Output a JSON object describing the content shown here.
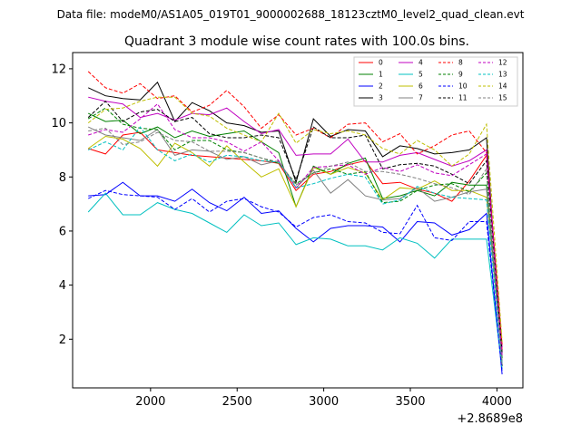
{
  "suptitle": "Data file: modeM0/AS1A05_019T01_9000002688_18123cztM0_level2_quad_clean.evt",
  "chart_data": {
    "type": "line",
    "title": "Quadrant 3 module wise count rates with 100.0s bins.",
    "xlabel": "",
    "ylabel": "",
    "x_offset_label": "+2.8689e8",
    "xlim": [
      1550,
      4150
    ],
    "ylim": [
      0.2,
      12.6
    ],
    "xticks": [
      2000,
      2500,
      3000,
      3500,
      4000
    ],
    "yticks": [
      2,
      4,
      6,
      8,
      10,
      12
    ],
    "legend_position": "top-right",
    "x": [
      1640,
      1740,
      1840,
      1940,
      2040,
      2140,
      2240,
      2340,
      2440,
      2540,
      2640,
      2740,
      2840,
      2940,
      3040,
      3140,
      3240,
      3340,
      3440,
      3540,
      3640,
      3740,
      3840,
      3940,
      4030
    ],
    "series": [
      {
        "name": "0",
        "color": "#ff0000",
        "dash": "solid",
        "values": [
          9.05,
          8.85,
          9.55,
          9.65,
          9.0,
          8.9,
          8.8,
          8.75,
          8.7,
          8.65,
          8.6,
          8.5,
          7.5,
          8.1,
          8.2,
          8.45,
          8.6,
          7.75,
          7.8,
          7.55,
          7.4,
          7.1,
          7.85,
          8.8,
          1.6
        ]
      },
      {
        "name": "1",
        "color": "#008000",
        "dash": "solid",
        "values": [
          10.35,
          10.05,
          10.1,
          9.6,
          9.85,
          9.45,
          9.7,
          9.5,
          9.6,
          9.7,
          9.3,
          8.9,
          6.9,
          8.4,
          8.1,
          8.5,
          8.7,
          7.2,
          7.3,
          7.5,
          7.3,
          7.8,
          7.7,
          7.7,
          1.4
        ]
      },
      {
        "name": "2",
        "color": "#0000ff",
        "dash": "solid",
        "values": [
          7.3,
          7.35,
          7.8,
          7.3,
          7.3,
          7.1,
          7.55,
          7.05,
          6.75,
          7.25,
          6.65,
          6.75,
          6.1,
          5.6,
          6.1,
          6.2,
          6.2,
          6.15,
          5.6,
          6.35,
          6.3,
          5.85,
          6.05,
          6.65,
          0.7
        ]
      },
      {
        "name": "3",
        "color": "#000000",
        "dash": "solid",
        "values": [
          11.3,
          11.0,
          10.9,
          10.85,
          11.5,
          10.05,
          10.75,
          10.45,
          10.0,
          9.9,
          9.65,
          9.7,
          7.8,
          10.15,
          9.5,
          9.75,
          9.7,
          8.75,
          9.15,
          9.05,
          8.85,
          8.9,
          9.0,
          9.45,
          1.0
        ]
      },
      {
        "name": "4",
        "color": "#c000c0",
        "dash": "solid",
        "values": [
          10.95,
          10.8,
          10.7,
          10.2,
          10.35,
          10.1,
          10.35,
          10.3,
          10.55,
          10.05,
          9.6,
          9.75,
          8.8,
          8.85,
          8.85,
          9.4,
          8.55,
          8.55,
          8.8,
          8.9,
          8.65,
          8.4,
          8.6,
          9.0,
          1.7
        ]
      },
      {
        "name": "5",
        "color": "#00c0c0",
        "dash": "solid",
        "values": [
          6.7,
          7.4,
          6.6,
          6.6,
          7.05,
          6.8,
          6.65,
          6.3,
          5.95,
          6.6,
          6.2,
          6.3,
          5.5,
          5.75,
          5.7,
          5.45,
          5.45,
          5.3,
          5.75,
          5.55,
          5.0,
          5.7,
          5.7,
          5.7,
          0.9
        ]
      },
      {
        "name": "6",
        "color": "#bfbf00",
        "dash": "solid",
        "values": [
          9.05,
          9.5,
          9.4,
          9.05,
          8.4,
          9.25,
          8.9,
          8.4,
          9.15,
          8.55,
          8.0,
          8.3,
          6.9,
          8.35,
          8.1,
          8.35,
          8.15,
          7.15,
          7.6,
          7.55,
          7.85,
          7.5,
          7.5,
          7.25,
          1.5
        ]
      },
      {
        "name": "7",
        "color": "#808080",
        "dash": "solid",
        "values": [
          9.85,
          9.55,
          9.45,
          9.35,
          9.75,
          8.8,
          9.0,
          8.95,
          8.65,
          8.75,
          8.45,
          8.6,
          7.6,
          8.25,
          7.4,
          7.9,
          7.3,
          7.15,
          7.2,
          7.6,
          7.1,
          7.25,
          7.45,
          7.55,
          1.2
        ]
      },
      {
        "name": "8",
        "color": "#ff0000",
        "dash": "dashed",
        "values": [
          11.9,
          11.3,
          11.1,
          11.45,
          10.9,
          11.0,
          10.4,
          10.65,
          11.2,
          10.6,
          9.8,
          10.3,
          9.55,
          9.8,
          9.45,
          9.95,
          10.0,
          9.3,
          9.6,
          8.85,
          9.15,
          9.55,
          9.7,
          8.9,
          1.8
        ]
      },
      {
        "name": "9",
        "color": "#008000",
        "dash": "dashed",
        "values": [
          10.15,
          10.55,
          9.95,
          9.8,
          9.75,
          9.0,
          9.35,
          9.35,
          9.0,
          8.9,
          8.7,
          8.5,
          7.75,
          8.15,
          8.3,
          8.1,
          8.2,
          7.05,
          7.1,
          7.5,
          7.7,
          7.75,
          7.45,
          8.15,
          1.3
        ]
      },
      {
        "name": "10",
        "color": "#0000ff",
        "dash": "dashed",
        "values": [
          7.2,
          7.5,
          7.35,
          7.3,
          7.25,
          6.8,
          7.2,
          6.7,
          7.1,
          7.2,
          6.9,
          6.7,
          6.15,
          6.5,
          6.6,
          6.35,
          6.3,
          5.95,
          5.9,
          6.95,
          5.75,
          5.65,
          6.35,
          6.35,
          0.8
        ]
      },
      {
        "name": "11",
        "color": "#000000",
        "dash": "dashed",
        "values": [
          10.2,
          10.8,
          10.05,
          10.4,
          10.5,
          10.05,
          10.2,
          9.6,
          9.45,
          9.45,
          9.55,
          9.45,
          7.9,
          9.85,
          9.45,
          9.45,
          9.55,
          8.3,
          8.45,
          8.5,
          8.4,
          8.1,
          7.75,
          8.6,
          1.5
        ]
      },
      {
        "name": "12",
        "color": "#c000c0",
        "dash": "dashed",
        "values": [
          9.55,
          9.75,
          9.65,
          10.15,
          10.7,
          9.75,
          9.45,
          9.45,
          9.3,
          8.95,
          9.3,
          8.6,
          7.6,
          8.35,
          8.4,
          8.45,
          8.1,
          8.35,
          8.2,
          8.45,
          8.15,
          8.05,
          8.45,
          8.85,
          1.4
        ]
      },
      {
        "name": "13",
        "color": "#00c0c0",
        "dash": "dashed",
        "values": [
          9.0,
          9.3,
          9.0,
          9.85,
          9.0,
          8.6,
          8.85,
          8.55,
          8.8,
          8.75,
          8.6,
          8.55,
          7.6,
          7.75,
          7.95,
          8.1,
          8.0,
          7.0,
          7.15,
          7.65,
          7.4,
          7.25,
          7.2,
          7.15,
          1.1
        ]
      },
      {
        "name": "14",
        "color": "#bfbf00",
        "dash": "dashed",
        "values": [
          10.0,
          10.5,
          10.55,
          10.8,
          10.95,
          10.95,
          10.35,
          10.25,
          9.8,
          9.55,
          9.3,
          10.35,
          9.25,
          9.75,
          9.6,
          9.7,
          9.55,
          9.05,
          8.85,
          9.35,
          9.0,
          8.4,
          8.85,
          9.95,
          1.9
        ]
      },
      {
        "name": "15",
        "color": "#808080",
        "dash": "dashed",
        "values": [
          9.7,
          9.8,
          9.2,
          9.3,
          9.65,
          9.35,
          9.3,
          8.95,
          8.95,
          8.9,
          8.7,
          8.55,
          7.7,
          8.15,
          8.4,
          8.55,
          8.2,
          8.2,
          8.1,
          7.95,
          7.75,
          7.6,
          7.35,
          8.3,
          1.0
        ]
      }
    ]
  }
}
